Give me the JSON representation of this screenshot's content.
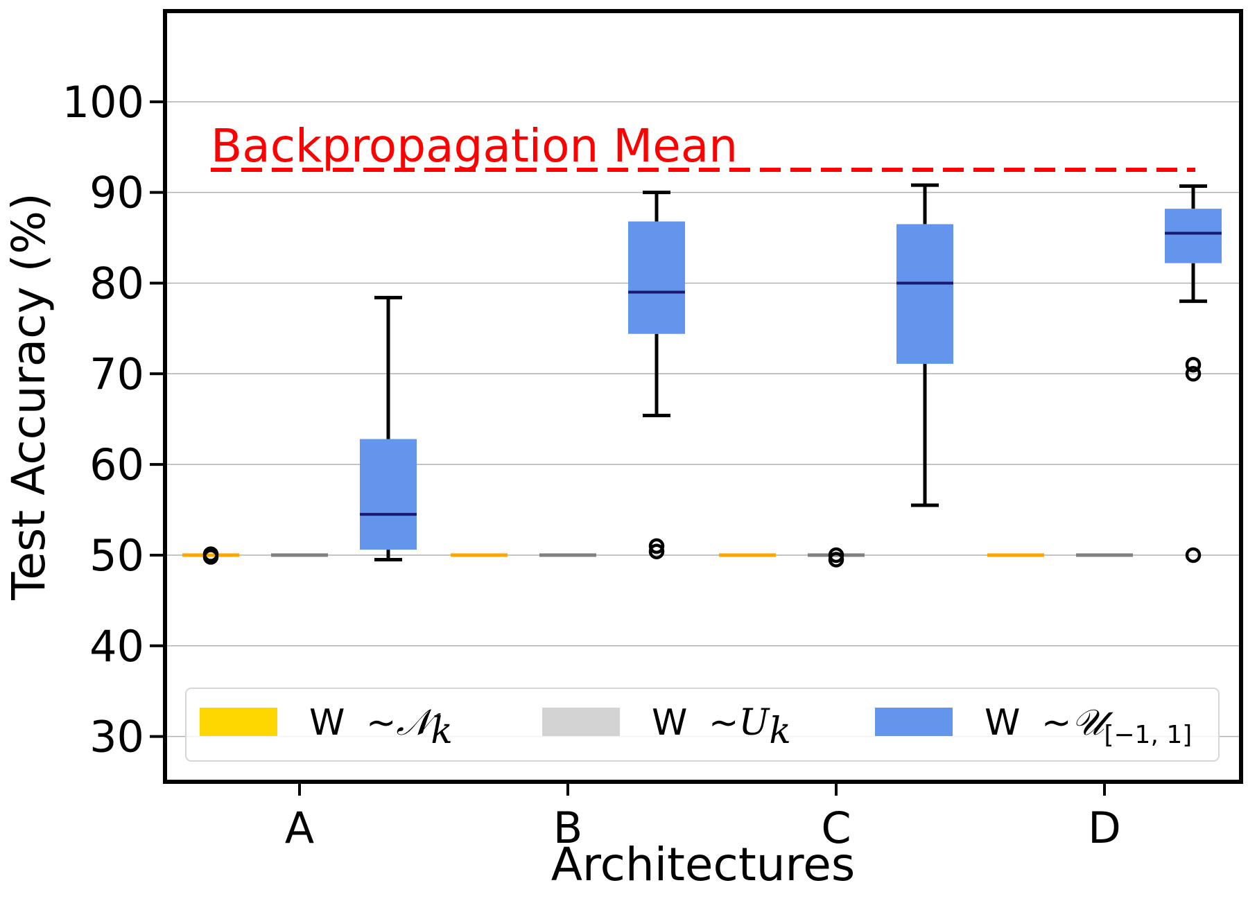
{
  "chart_data": {
    "type": "box",
    "xlabel": "Architectures",
    "ylabel": "Test Accuracy (%)",
    "ylim": [
      25,
      110
    ],
    "yticks": [
      30,
      40,
      50,
      60,
      70,
      80,
      90,
      100
    ],
    "ytick_labels": [
      "30",
      "40",
      "50",
      "60",
      "70",
      "80",
      "90",
      "100"
    ],
    "grid": "horizontal",
    "categories": [
      "A",
      "B",
      "C",
      "D"
    ],
    "reference_line": {
      "label": "Backpropagation Mean",
      "value": 92.5,
      "color": "#ff0000",
      "style": "dashed"
    },
    "legend": {
      "placement": "bottom",
      "entries": [
        {
          "name": "W ~ N_k",
          "prefix": "W",
          "tilde": "~",
          "symbol": "𝒩",
          "sub": "k",
          "color": "#ffd700"
        },
        {
          "name": "W ~ U_k",
          "prefix": "W",
          "tilde": "~",
          "symbol": "U",
          "sub": "k",
          "color": "#d3d3d3"
        },
        {
          "name": "W ~ U[-1,1]",
          "prefix": "W",
          "tilde": "~",
          "symbol": "𝒰",
          "sub": "[−1, 1]",
          "color": "#6495ed"
        }
      ]
    },
    "series": [
      {
        "name": "W ~ N_k",
        "fill": "#ffd700",
        "median_color": "#ffa500",
        "boxes": [
          {
            "category": "A",
            "min": 50,
            "q1": 50,
            "median": 50,
            "q3": 50,
            "max": 50,
            "outliers": [
              49.8,
              50.1
            ]
          },
          {
            "category": "B",
            "min": 50,
            "q1": 50,
            "median": 50,
            "q3": 50,
            "max": 50,
            "outliers": []
          },
          {
            "category": "C",
            "min": 50,
            "q1": 50,
            "median": 50,
            "q3": 50,
            "max": 50,
            "outliers": []
          },
          {
            "category": "D",
            "min": 50,
            "q1": 50,
            "median": 50,
            "q3": 50,
            "max": 50,
            "outliers": []
          }
        ]
      },
      {
        "name": "W ~ U_k",
        "fill": "#d3d3d3",
        "median_color": "#808080",
        "boxes": [
          {
            "category": "A",
            "min": 50,
            "q1": 50,
            "median": 50,
            "q3": 50,
            "max": 50,
            "outliers": []
          },
          {
            "category": "B",
            "min": 50,
            "q1": 50,
            "median": 50,
            "q3": 50,
            "max": 50,
            "outliers": []
          },
          {
            "category": "C",
            "min": 50,
            "q1": 50,
            "median": 50,
            "q3": 50,
            "max": 50,
            "outliers": [
              49.5,
              50
            ]
          },
          {
            "category": "D",
            "min": 50,
            "q1": 50,
            "median": 50,
            "q3": 50,
            "max": 50,
            "outliers": []
          }
        ]
      },
      {
        "name": "W ~ U[-1,1]",
        "fill": "#6495ed",
        "median_color": "#191970",
        "boxes": [
          {
            "category": "A",
            "min": 49.5,
            "q1": 50.6,
            "median": 54.5,
            "q3": 62.8,
            "max": 78.4,
            "outliers": []
          },
          {
            "category": "B",
            "min": 65.4,
            "q1": 74.4,
            "median": 79,
            "q3": 86.8,
            "max": 90,
            "outliers": [
              50.4,
              51
            ]
          },
          {
            "category": "C",
            "min": 55.5,
            "q1": 71.1,
            "median": 80,
            "q3": 86.5,
            "max": 90.8,
            "outliers": []
          },
          {
            "category": "D",
            "min": 78,
            "q1": 82.2,
            "median": 85.5,
            "q3": 88.2,
            "max": 90.7,
            "outliers": [
              50,
              70,
              71
            ]
          }
        ]
      }
    ]
  }
}
